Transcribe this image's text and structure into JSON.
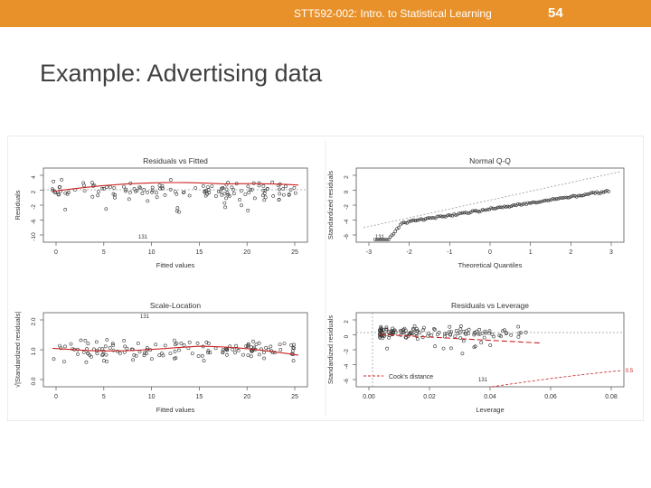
{
  "header": {
    "course": "STT592-002: Intro. to Statistical Learning",
    "page": "54",
    "accent_color": "#e8912a"
  },
  "slide_title": "Example: Advertising data",
  "figure": {
    "panels": [
      {
        "title": "Residuals vs Fitted",
        "xlabel": "Fitted values",
        "ylabel": "Residuals",
        "xticks": [
          "0",
          "5",
          "10",
          "15",
          "20",
          "25"
        ],
        "yticks": [
          "-10",
          "-6",
          "-2",
          "2",
          "4"
        ],
        "point_label": "131"
      },
      {
        "title": "Normal Q-Q",
        "xlabel": "Theoretical Quantiles",
        "ylabel": "Standardized residuals",
        "xticks": [
          "-3",
          "-2",
          "-1",
          "0",
          "1",
          "2",
          "3"
        ],
        "yticks": [
          "-6",
          "-4",
          "-2",
          "0",
          "2"
        ],
        "point_label": "131"
      },
      {
        "title": "Scale-Location",
        "xlabel": "Fitted values",
        "ylabel": "√|Standardized residuals|",
        "xticks": [
          "0",
          "5",
          "10",
          "15",
          "20",
          "25"
        ],
        "yticks": [
          "0.0",
          "1.0",
          "2.0"
        ],
        "point_label": "131"
      },
      {
        "title": "Residuals vs Leverage",
        "xlabel": "Leverage",
        "ylabel": "Standardized residuals",
        "xticks": [
          "0.00",
          "0.02",
          "0.04",
          "0.06",
          "0.08"
        ],
        "yticks": [
          "-6",
          "-4",
          "-2",
          "0",
          "2"
        ],
        "point_label": "131",
        "legend": "Cook's distance",
        "contour_label": "0.5"
      }
    ],
    "point_color": "#333333",
    "smooth_color": "#cc2222",
    "reference_line_color": "#999999"
  }
}
